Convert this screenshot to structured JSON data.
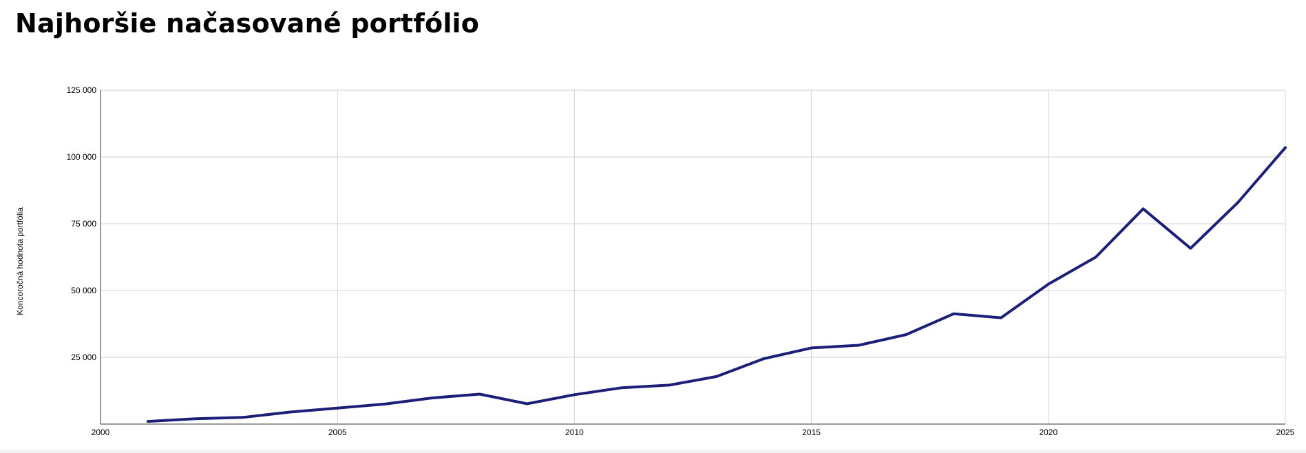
{
  "page": {
    "title": "Najhoršie načasované portfólio"
  },
  "chart_data": {
    "type": "line",
    "title": "Najhoršie načasované portfólio",
    "xlabel": "",
    "ylabel": "Koncoročná hodnota portfólia",
    "xlim": [
      2000,
      2025
    ],
    "ylim": [
      0,
      125000
    ],
    "x_ticks": [
      2000,
      2005,
      2010,
      2015,
      2020,
      2025
    ],
    "x_tick_labels": [
      "2000",
      "2005",
      "2010",
      "2015",
      "2020",
      "2025"
    ],
    "y_ticks": [
      25000,
      50000,
      75000,
      100000,
      125000
    ],
    "y_tick_labels": [
      "25 000",
      "50 000",
      "75 000",
      "100 000",
      "125 000"
    ],
    "grid": true,
    "line_color": "#1c1f78",
    "grid_color": "#d3d3d3",
    "series": [
      {
        "x": [
          2001,
          2002,
          2003,
          2004,
          2005,
          2006,
          2007,
          2008,
          2009,
          2010,
          2011,
          2012,
          2013,
          2014,
          2015,
          2016,
          2017,
          2018,
          2019,
          2020,
          2021,
          2022,
          2023,
          2024,
          2025
        ],
        "values": [
          1000,
          2000,
          2500,
          4500,
          6000,
          7500,
          9800,
          11200,
          7600,
          11000,
          13600,
          14600,
          17800,
          24500,
          28500,
          29500,
          33500,
          41300,
          39800,
          52400,
          62500,
          80600,
          65800,
          83000,
          103500
        ]
      }
    ]
  }
}
